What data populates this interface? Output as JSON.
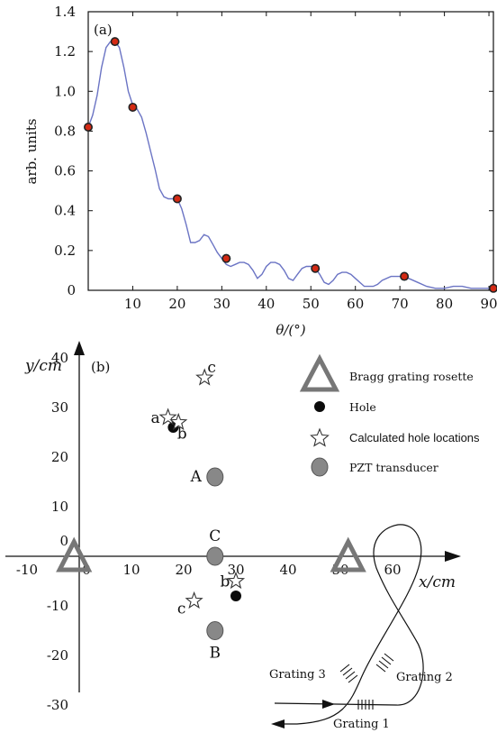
{
  "chart_data": [
    {
      "type": "line",
      "panel_label": "(a)",
      "xlabel": "θ/(°)",
      "ylabel": "arb. units",
      "xlim": [
        0,
        91
      ],
      "ylim": [
        0,
        1.4
      ],
      "x_ticks": [
        10,
        20,
        30,
        40,
        50,
        60,
        70,
        80,
        90
      ],
      "y_ticks": [
        "0",
        "0.2",
        "0.4",
        "0.6",
        "0.8",
        "1.0",
        "1.2",
        "1.4"
      ],
      "y_tick_values": [
        0,
        0.2,
        0.4,
        0.6,
        0.8,
        1.0,
        1.2,
        1.4
      ],
      "line_color": "#6b74c4",
      "marker_color": "#d42a14",
      "curve": {
        "x": [
          0,
          1,
          2,
          3,
          4,
          5,
          6,
          7,
          8,
          9,
          10,
          11,
          12,
          13,
          14,
          15,
          16,
          17,
          18,
          19,
          20,
          21,
          22,
          23,
          24,
          25,
          26,
          27,
          28,
          29,
          30,
          31,
          32,
          33,
          34,
          35,
          36,
          37,
          38,
          39,
          40,
          41,
          42,
          43,
          44,
          45,
          46,
          47,
          48,
          49,
          50,
          51,
          52,
          53,
          54,
          55,
          56,
          57,
          58,
          59,
          60,
          62,
          64,
          65,
          66,
          68,
          70,
          71,
          72,
          74,
          76,
          78,
          80,
          82,
          84,
          86,
          88,
          90,
          91
        ],
        "y": [
          0.82,
          0.88,
          0.98,
          1.12,
          1.22,
          1.25,
          1.25,
          1.22,
          1.12,
          1.0,
          0.93,
          0.91,
          0.87,
          0.79,
          0.7,
          0.61,
          0.51,
          0.47,
          0.46,
          0.46,
          0.46,
          0.41,
          0.33,
          0.24,
          0.24,
          0.25,
          0.28,
          0.27,
          0.23,
          0.19,
          0.16,
          0.13,
          0.12,
          0.13,
          0.14,
          0.14,
          0.13,
          0.1,
          0.06,
          0.08,
          0.12,
          0.14,
          0.14,
          0.13,
          0.1,
          0.06,
          0.05,
          0.08,
          0.11,
          0.12,
          0.12,
          0.11,
          0.08,
          0.04,
          0.03,
          0.05,
          0.08,
          0.09,
          0.09,
          0.08,
          0.06,
          0.02,
          0.02,
          0.03,
          0.05,
          0.07,
          0.07,
          0.07,
          0.06,
          0.04,
          0.02,
          0.01,
          0.01,
          0.02,
          0.02,
          0.01,
          0.01,
          0.01,
          0.02
        ]
      },
      "markers": {
        "x": [
          0,
          6,
          10,
          20,
          31,
          51,
          71,
          91
        ],
        "y": [
          0.82,
          1.25,
          0.92,
          0.46,
          0.16,
          0.11,
          0.07,
          0.01
        ]
      }
    },
    {
      "type": "scatter",
      "panel_label": "(b)",
      "xlabel": "x/cm",
      "ylabel": "y/cm",
      "xlim": [
        -12,
        70
      ],
      "ylim": [
        -37,
        47
      ],
      "x_ticks": [
        "-10",
        "0",
        "10",
        "20",
        "30",
        "40",
        "50",
        "60"
      ],
      "x_tick_values": [
        -10,
        0,
        10,
        20,
        30,
        40,
        50,
        60
      ],
      "y_ticks": [
        "40",
        "30",
        "20",
        "10",
        "0",
        "-10",
        "-20",
        "-30"
      ],
      "y_tick_values": [
        40,
        30,
        20,
        10,
        0,
        -10,
        -20,
        -30
      ],
      "legend": [
        {
          "symbol": "triangle",
          "label": "Bragg grating rosette"
        },
        {
          "symbol": "filled-circle",
          "label": "Hole"
        },
        {
          "symbol": "star",
          "label": "Calculated hole locations"
        },
        {
          "symbol": "gray-circle",
          "label": "PZT transducer"
        }
      ],
      "rosettes": [
        {
          "x": -1,
          "y": 0
        },
        {
          "x": 51.5,
          "y": 0
        }
      ],
      "holes": [
        {
          "x": 18,
          "y": 26
        },
        {
          "x": 30,
          "y": -8
        }
      ],
      "calculated": [
        {
          "x": 17,
          "y": 28,
          "label": "a"
        },
        {
          "x": 19,
          "y": 27,
          "label": "b"
        },
        {
          "x": 24,
          "y": 36,
          "label": "c"
        },
        {
          "x": 30,
          "y": -5,
          "label": "b"
        },
        {
          "x": 22,
          "y": -9,
          "label": "c"
        }
      ],
      "pzt": [
        {
          "x": 26,
          "y": 16,
          "label": "A"
        },
        {
          "x": 26,
          "y": -15,
          "label": "B"
        },
        {
          "x": 26,
          "y": 0,
          "label": "C"
        }
      ]
    }
  ],
  "grating_labels": [
    "Grating 3",
    "Grating 2",
    "Grating 1"
  ]
}
